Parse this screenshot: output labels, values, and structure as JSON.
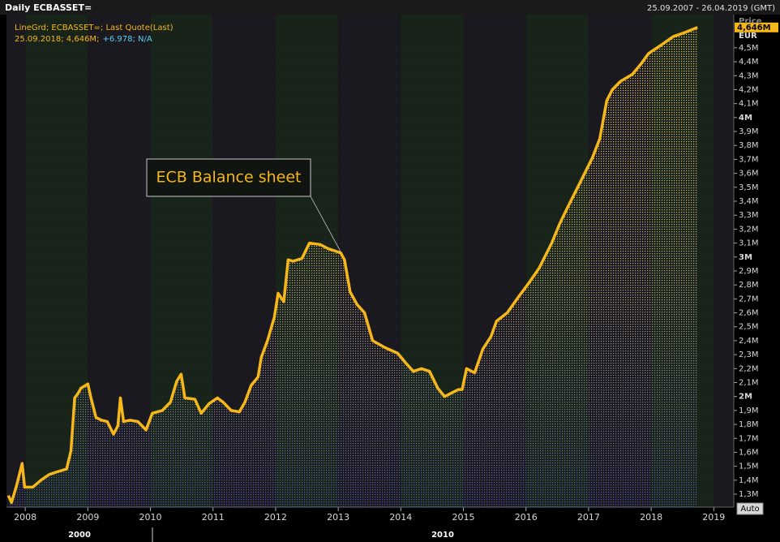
{
  "header": {
    "title": "Daily ECBASSET=",
    "range": "25.09.2007 - 26.04.2019 (GMT)"
  },
  "chart_data": {
    "type": "area",
    "legend_lines": [
      "LineGrd; ECBASSET=; Last Quote(Last)"
    ],
    "legend_values": [
      "25.09.2018; 4,646M;",
      "+6.978; N/A"
    ],
    "annotation": "ECB Balance sheet",
    "y_axis_title": "Price",
    "y_axis_unit": "EUR",
    "last_label": "4,646M",
    "color": "#f5b71a",
    "x": [
      2007.73,
      2007.78,
      2007.86,
      2007.95,
      2007.99,
      2008.12,
      2008.25,
      2008.38,
      2008.51,
      2008.66,
      2008.73,
      2008.79,
      2008.84,
      2008.89,
      2009.0,
      2009.05,
      2009.13,
      2009.22,
      2009.31,
      2009.41,
      2009.48,
      2009.52,
      2009.57,
      2009.67,
      2009.8,
      2009.93,
      2010.03,
      2010.19,
      2010.32,
      2010.42,
      2010.49,
      2010.55,
      2010.71,
      2010.81,
      2010.94,
      2011.07,
      2011.16,
      2011.29,
      2011.42,
      2011.51,
      2011.61,
      2011.72,
      2011.77,
      2011.87,
      2011.98,
      2012.04,
      2012.13,
      2012.2,
      2012.28,
      2012.42,
      2012.54,
      2012.71,
      2012.84,
      2013.04,
      2013.1,
      2013.19,
      2013.3,
      2013.42,
      2013.55,
      2013.75,
      2013.95,
      2014.08,
      2014.2,
      2014.33,
      2014.46,
      2014.59,
      2014.7,
      2014.79,
      2014.92,
      2014.98,
      2015.05,
      2015.18,
      2015.31,
      2015.44,
      2015.53,
      2015.7,
      2015.89,
      2016.04,
      2016.21,
      2016.41,
      2016.54,
      2016.67,
      2016.86,
      2017.06,
      2017.18,
      2017.29,
      2017.38,
      2017.51,
      2017.7,
      2017.83,
      2017.96,
      2018.16,
      2018.35,
      2018.54,
      2018.74
    ],
    "values": [
      1.29,
      1.24,
      1.36,
      1.52,
      1.35,
      1.35,
      1.4,
      1.44,
      1.46,
      1.48,
      1.61,
      1.99,
      2.02,
      2.06,
      2.09,
      1.99,
      1.85,
      1.83,
      1.82,
      1.73,
      1.79,
      1.99,
      1.82,
      1.83,
      1.82,
      1.76,
      1.88,
      1.9,
      1.96,
      2.11,
      2.16,
      1.99,
      1.98,
      1.88,
      1.95,
      1.99,
      1.96,
      1.9,
      1.89,
      1.96,
      2.08,
      2.14,
      2.28,
      2.4,
      2.57,
      2.74,
      2.68,
      2.98,
      2.97,
      2.99,
      3.1,
      3.09,
      3.06,
      3.03,
      2.98,
      2.75,
      2.66,
      2.6,
      2.4,
      2.35,
      2.31,
      2.24,
      2.18,
      2.2,
      2.18,
      2.06,
      2.0,
      2.02,
      2.05,
      2.05,
      2.2,
      2.17,
      2.34,
      2.43,
      2.54,
      2.6,
      2.72,
      2.81,
      2.92,
      3.1,
      3.24,
      3.36,
      3.53,
      3.71,
      3.85,
      4.12,
      4.2,
      4.26,
      4.31,
      4.38,
      4.46,
      4.52,
      4.58,
      4.61,
      4.646
    ],
    "xlim": [
      2007.7,
      2019.32
    ],
    "xticks": [
      2008,
      2009,
      2010,
      2011,
      2012,
      2013,
      2014,
      2015,
      2016,
      2017,
      2018,
      2019
    ],
    "x_group_labels": [
      "2000",
      "2010"
    ],
    "ylim": [
      1.207,
      4.738
    ],
    "yticks": [
      {
        "value": 1.3,
        "label": "1,3M"
      },
      {
        "value": 1.4,
        "label": "1,4M"
      },
      {
        "value": 1.5,
        "label": "1,5M"
      },
      {
        "value": 1.6,
        "label": "1,6M"
      },
      {
        "value": 1.7,
        "label": "1,7M"
      },
      {
        "value": 1.8,
        "label": "1,8M"
      },
      {
        "value": 1.9,
        "label": "1,9M"
      },
      {
        "value": 2,
        "label": "2M"
      },
      {
        "value": 2.1,
        "label": "2,1M"
      },
      {
        "value": 2.2,
        "label": "2,2M"
      },
      {
        "value": 2.3,
        "label": "2,3M"
      },
      {
        "value": 2.4,
        "label": "2,4M"
      },
      {
        "value": 2.5,
        "label": "2,5M"
      },
      {
        "value": 2.6,
        "label": "2,6M"
      },
      {
        "value": 2.7,
        "label": "2,7M"
      },
      {
        "value": 2.8,
        "label": "2,8M"
      },
      {
        "value": 2.9,
        "label": "2,9M"
      },
      {
        "value": 3,
        "label": "3M"
      },
      {
        "value": 3.1,
        "label": "3,1M"
      },
      {
        "value": 3.2,
        "label": "3,2M"
      },
      {
        "value": 3.3,
        "label": "3,3M"
      },
      {
        "value": 3.4,
        "label": "3,4M"
      },
      {
        "value": 3.5,
        "label": "3,5M"
      },
      {
        "value": 3.6,
        "label": "3,6M"
      },
      {
        "value": 3.7,
        "label": "3,7M"
      },
      {
        "value": 3.8,
        "label": "3,8M"
      },
      {
        "value": 3.9,
        "label": "3,9M"
      },
      {
        "value": 4,
        "label": "4M"
      },
      {
        "value": 4.1,
        "label": "4,1M"
      },
      {
        "value": 4.2,
        "label": "4,2M"
      },
      {
        "value": 4.3,
        "label": "4,3M"
      },
      {
        "value": 4.4,
        "label": "4,4M"
      },
      {
        "value": 4.5,
        "label": "4,5M"
      }
    ],
    "grid": true,
    "button": "Auto"
  }
}
